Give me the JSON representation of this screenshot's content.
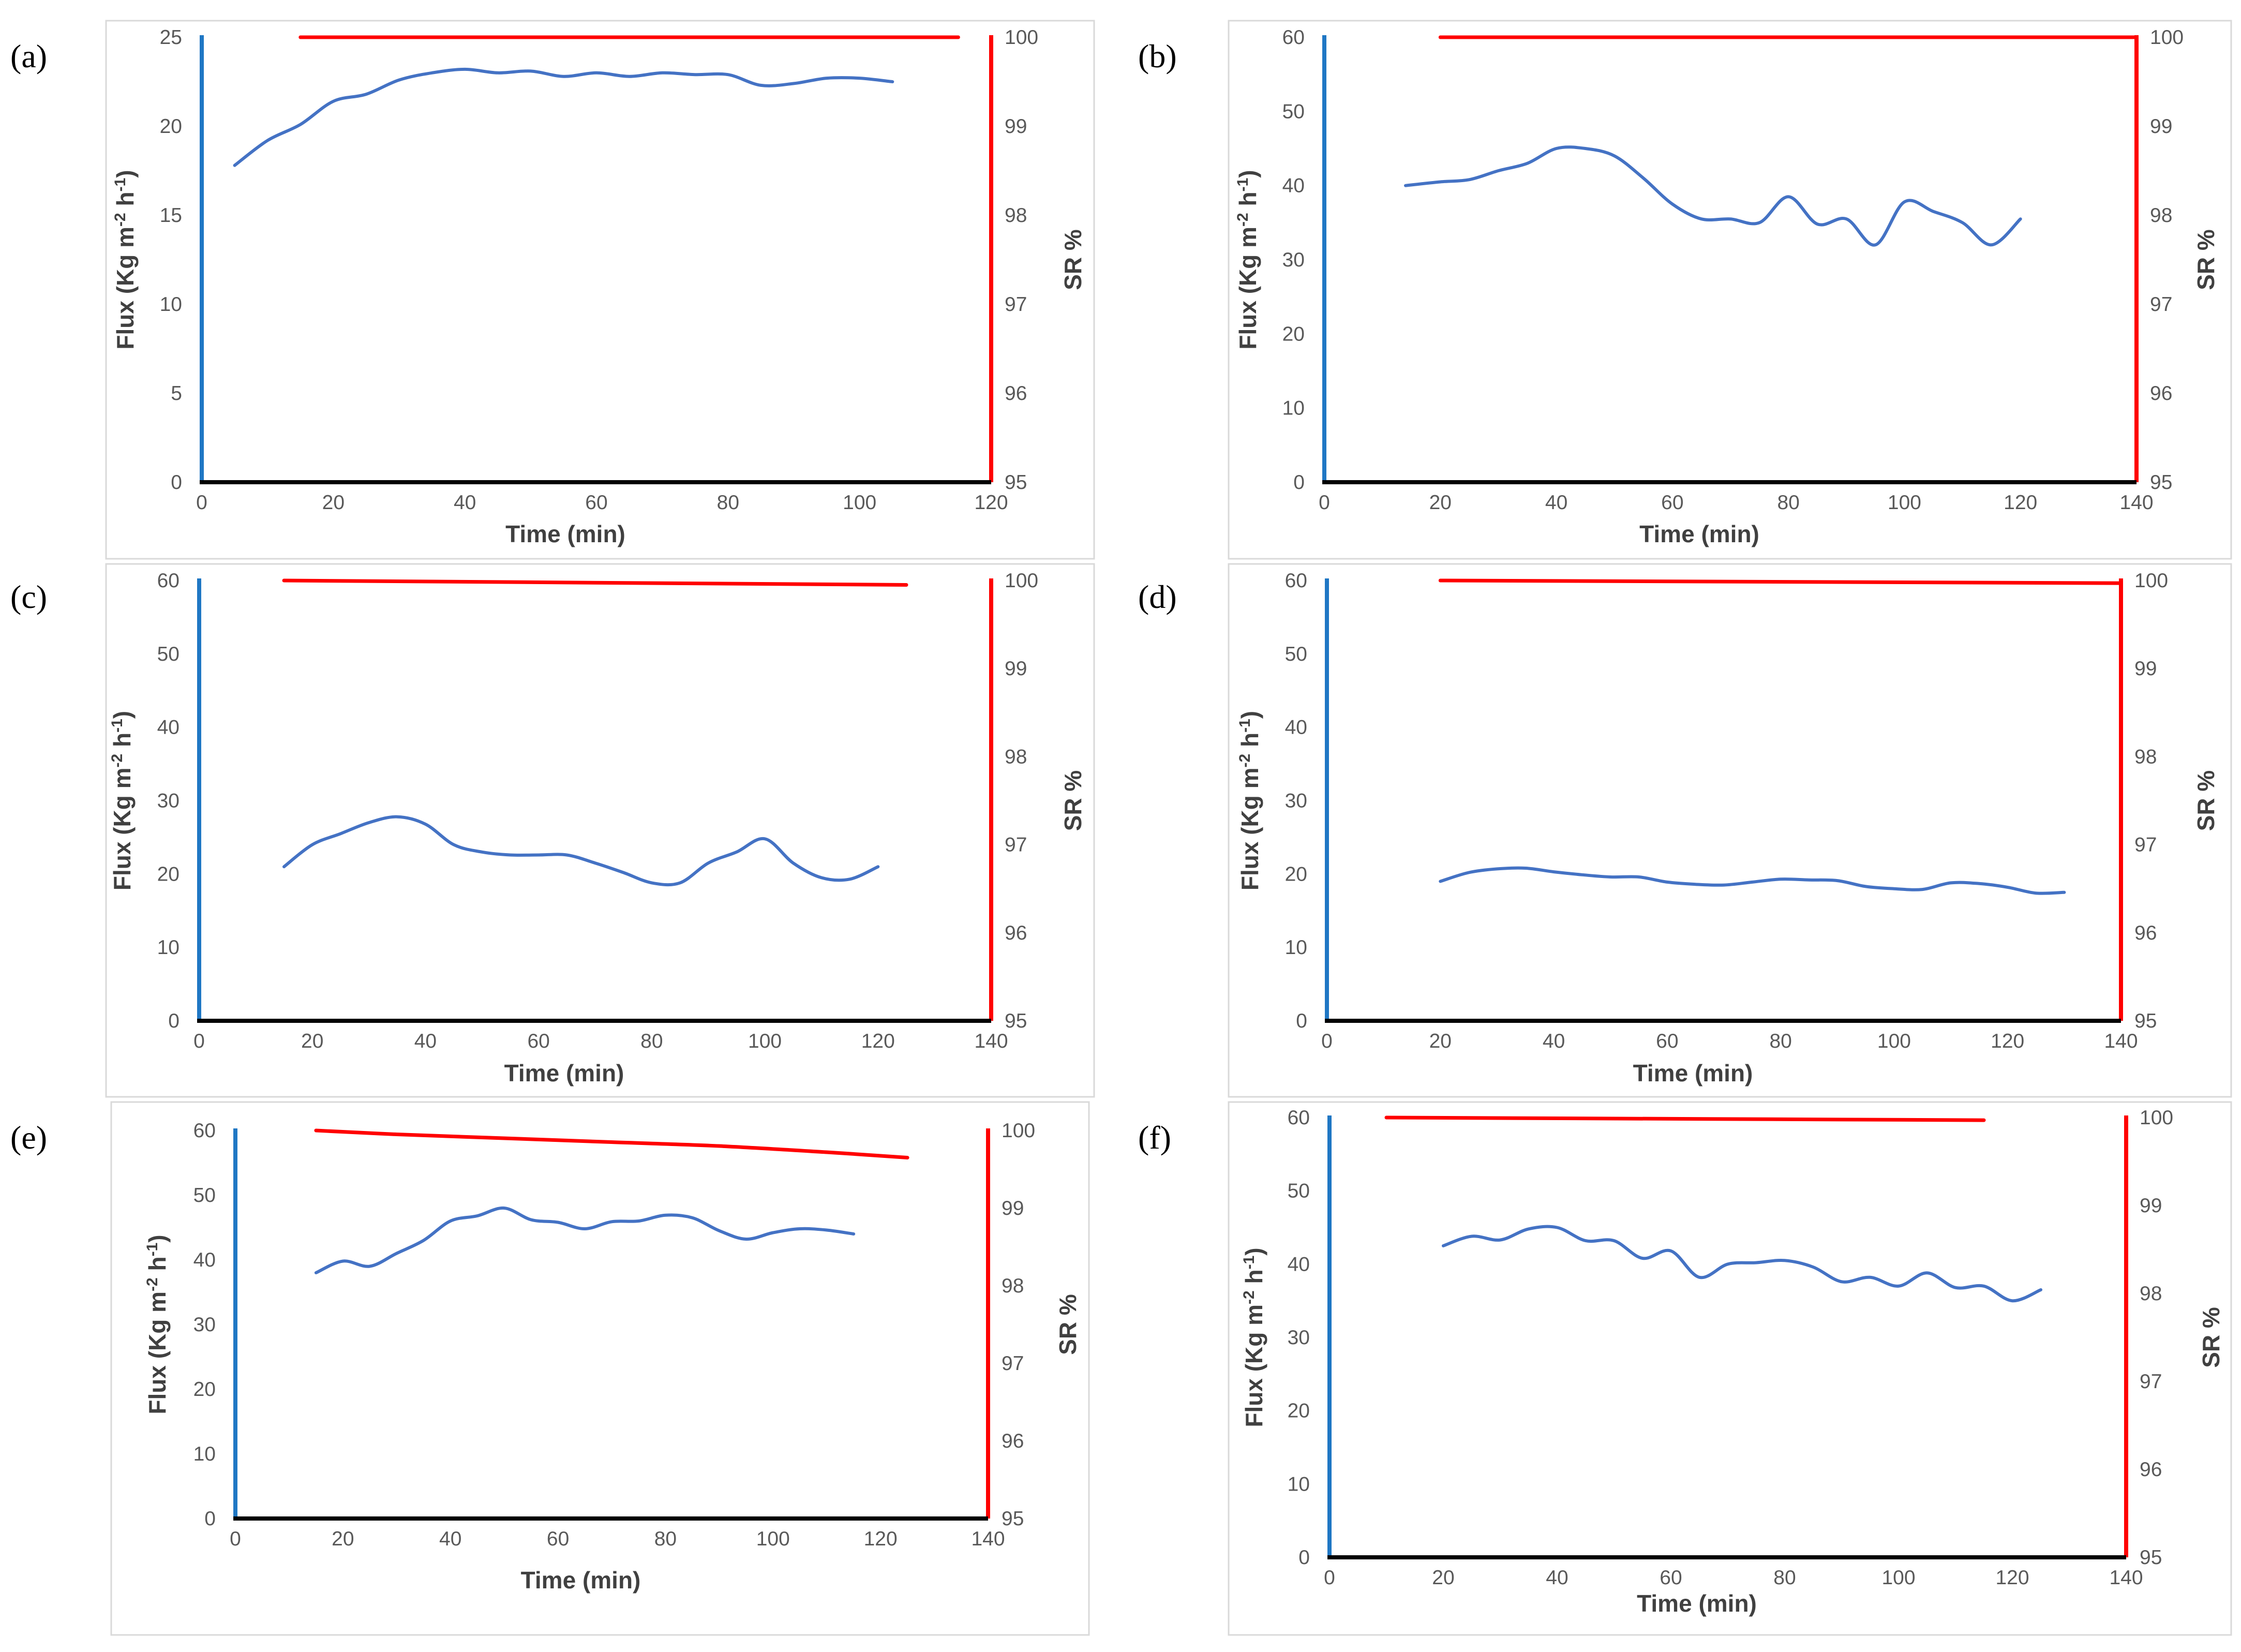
{
  "colors": {
    "flux_axis": "#1f77c4",
    "flux_line": "#4472c4",
    "sr_axis": "#ff0000",
    "sr_line": "#ff0000",
    "x_axis": "#000000",
    "frame": "#d9d9d9"
  },
  "chart_data": [
    {
      "panel": "(a)",
      "type": "line",
      "xlabel": "Time (min)",
      "ylabel": "Flux (Kg m-2 h-1)",
      "y2label": "SR %",
      "xlim": [
        0,
        120
      ],
      "xticks": [
        0,
        20,
        40,
        60,
        80,
        100,
        120
      ],
      "ylim": [
        0,
        25
      ],
      "yticks": [
        0,
        5,
        10,
        15,
        20,
        25
      ],
      "y2lim": [
        95,
        100
      ],
      "y2ticks": [
        95,
        96,
        97,
        98,
        99,
        100
      ],
      "series": [
        {
          "name": "Flux",
          "axis": "left",
          "x": [
            5,
            10,
            15,
            20,
            25,
            30,
            35,
            40,
            45,
            50,
            55,
            60,
            65,
            70,
            75,
            80,
            85,
            90,
            95,
            100,
            105
          ],
          "y": [
            17.8,
            19.2,
            20.1,
            21.4,
            21.8,
            22.6,
            23.0,
            23.2,
            23.0,
            23.1,
            22.8,
            23.0,
            22.8,
            23.0,
            22.9,
            22.9,
            22.3,
            22.4,
            22.7,
            22.7,
            22.5
          ]
        },
        {
          "name": "SR",
          "axis": "right",
          "x": [
            15,
            115
          ],
          "y": [
            100,
            100
          ]
        }
      ]
    },
    {
      "panel": "(b)",
      "type": "line",
      "xlabel": "Time (min)",
      "ylabel": "Flux (Kg m-2 h-1)",
      "y2label": "SR %",
      "xlim": [
        0,
        140
      ],
      "xticks": [
        0,
        20,
        40,
        60,
        80,
        100,
        120,
        140
      ],
      "ylim": [
        0,
        60
      ],
      "yticks": [
        0,
        10,
        20,
        30,
        40,
        50,
        60
      ],
      "y2lim": [
        95,
        100
      ],
      "y2ticks": [
        95,
        96,
        97,
        98,
        99,
        100
      ],
      "series": [
        {
          "name": "Flux",
          "axis": "left",
          "x": [
            14,
            20,
            25,
            30,
            35,
            40,
            45,
            50,
            55,
            60,
            65,
            70,
            75,
            80,
            85,
            90,
            95,
            100,
            105,
            110,
            115,
            120
          ],
          "y": [
            40.0,
            40.5,
            40.8,
            42.0,
            43.0,
            45.0,
            45.0,
            44.0,
            41.0,
            37.5,
            35.5,
            35.5,
            35.0,
            38.5,
            34.8,
            35.5,
            32.0,
            37.8,
            36.5,
            35.0,
            32.0,
            35.5
          ]
        },
        {
          "name": "SR",
          "axis": "right",
          "x": [
            20,
            140
          ],
          "y": [
            100,
            100
          ]
        }
      ]
    },
    {
      "panel": "(c)",
      "type": "line",
      "xlabel": "Time (min)",
      "ylabel": "Flux (Kg m-2 h-1)",
      "y2label": "SR %",
      "xlim": [
        0,
        140
      ],
      "xticks": [
        0,
        20,
        40,
        60,
        80,
        100,
        120,
        140
      ],
      "ylim": [
        0,
        60
      ],
      "yticks": [
        0,
        10,
        20,
        30,
        40,
        50,
        60
      ],
      "y2lim": [
        95,
        100
      ],
      "y2ticks": [
        95,
        96,
        97,
        98,
        99,
        100
      ],
      "series": [
        {
          "name": "Flux",
          "axis": "left",
          "x": [
            15,
            20,
            25,
            30,
            35,
            40,
            45,
            50,
            55,
            60,
            65,
            70,
            75,
            80,
            85,
            90,
            95,
            100,
            105,
            110,
            115,
            120
          ],
          "y": [
            21.0,
            24.0,
            25.5,
            27.0,
            27.8,
            26.8,
            24.0,
            23.0,
            22.6,
            22.6,
            22.6,
            21.5,
            20.2,
            18.8,
            18.8,
            21.5,
            23.0,
            24.8,
            21.5,
            19.5,
            19.3,
            21.0
          ]
        },
        {
          "name": "SR",
          "axis": "right",
          "x": [
            15,
            125
          ],
          "y": [
            100,
            99.95
          ]
        }
      ]
    },
    {
      "panel": "(d)",
      "type": "line",
      "xlabel": "Time (min)",
      "ylabel": "Flux (Kg m-2 h-1)",
      "y2label": "SR %",
      "xlim": [
        0,
        140
      ],
      "xticks": [
        0,
        20,
        40,
        60,
        80,
        100,
        120,
        140
      ],
      "ylim": [
        0,
        60
      ],
      "yticks": [
        0,
        10,
        20,
        30,
        40,
        50,
        60
      ],
      "y2lim": [
        95,
        100
      ],
      "y2ticks": [
        95,
        96,
        97,
        98,
        99,
        100
      ],
      "series": [
        {
          "name": "Flux",
          "axis": "left",
          "x": [
            20,
            25,
            30,
            35,
            40,
            45,
            50,
            55,
            60,
            65,
            70,
            75,
            80,
            85,
            90,
            95,
            100,
            105,
            110,
            115,
            120,
            125,
            130
          ],
          "y": [
            19.0,
            20.2,
            20.7,
            20.8,
            20.3,
            19.9,
            19.6,
            19.6,
            18.9,
            18.6,
            18.5,
            18.9,
            19.3,
            19.2,
            19.1,
            18.3,
            18.0,
            17.9,
            18.8,
            18.7,
            18.2,
            17.4,
            17.5
          ]
        },
        {
          "name": "SR",
          "axis": "right",
          "x": [
            20,
            140
          ],
          "y": [
            100,
            99.97
          ]
        }
      ]
    },
    {
      "panel": "(e)",
      "type": "line",
      "xlabel": "Time (min)",
      "ylabel": "Flux (Kg m-2 h-1)",
      "y2label": "SR %",
      "xlim": [
        0,
        140
      ],
      "xticks": [
        0,
        20,
        40,
        60,
        80,
        100,
        120,
        140
      ],
      "ylim": [
        0,
        60
      ],
      "yticks": [
        0,
        10,
        20,
        30,
        40,
        50,
        60
      ],
      "y2lim": [
        95,
        100
      ],
      "y2ticks": [
        95,
        96,
        97,
        98,
        99,
        100
      ],
      "series": [
        {
          "name": "Flux",
          "axis": "left",
          "x": [
            15,
            20,
            25,
            30,
            35,
            40,
            45,
            50,
            55,
            60,
            65,
            70,
            75,
            80,
            85,
            90,
            95,
            100,
            105,
            110,
            115
          ],
          "y": [
            38.0,
            39.8,
            39.0,
            41.0,
            43.0,
            46.0,
            46.8,
            48.0,
            46.2,
            45.8,
            44.8,
            45.9,
            46.0,
            46.9,
            46.5,
            44.5,
            43.2,
            44.2,
            44.8,
            44.6,
            44.0
          ]
        },
        {
          "name": "SR",
          "axis": "right",
          "x": [
            15,
            30,
            50,
            70,
            90,
            110,
            125
          ],
          "y": [
            100,
            99.95,
            99.9,
            99.85,
            99.8,
            99.72,
            99.65
          ]
        }
      ]
    },
    {
      "panel": "(f)",
      "type": "line",
      "xlabel": "Time (min)",
      "ylabel": "Flux (Kg m-2 h-1)",
      "y2label": "SR %",
      "xlim": [
        0,
        140
      ],
      "xticks": [
        0,
        20,
        40,
        60,
        80,
        100,
        120,
        140
      ],
      "ylim": [
        0,
        60
      ],
      "yticks": [
        0,
        10,
        20,
        30,
        40,
        50,
        60
      ],
      "y2lim": [
        95,
        100
      ],
      "y2ticks": [
        95,
        96,
        97,
        98,
        99,
        100
      ],
      "series": [
        {
          "name": "Flux",
          "axis": "left",
          "x": [
            20,
            25,
            30,
            35,
            40,
            45,
            50,
            55,
            60,
            65,
            70,
            75,
            80,
            85,
            90,
            95,
            100,
            105,
            110,
            115,
            120,
            125
          ],
          "y": [
            42.5,
            43.8,
            43.3,
            44.8,
            45.0,
            43.2,
            43.2,
            40.8,
            41.8,
            38.2,
            40.0,
            40.2,
            40.5,
            39.6,
            37.6,
            38.2,
            37.0,
            38.8,
            36.8,
            37.0,
            35.0,
            36.5
          ]
        },
        {
          "name": "SR",
          "axis": "right",
          "x": [
            10,
            115
          ],
          "y": [
            100,
            99.97
          ]
        }
      ]
    }
  ]
}
